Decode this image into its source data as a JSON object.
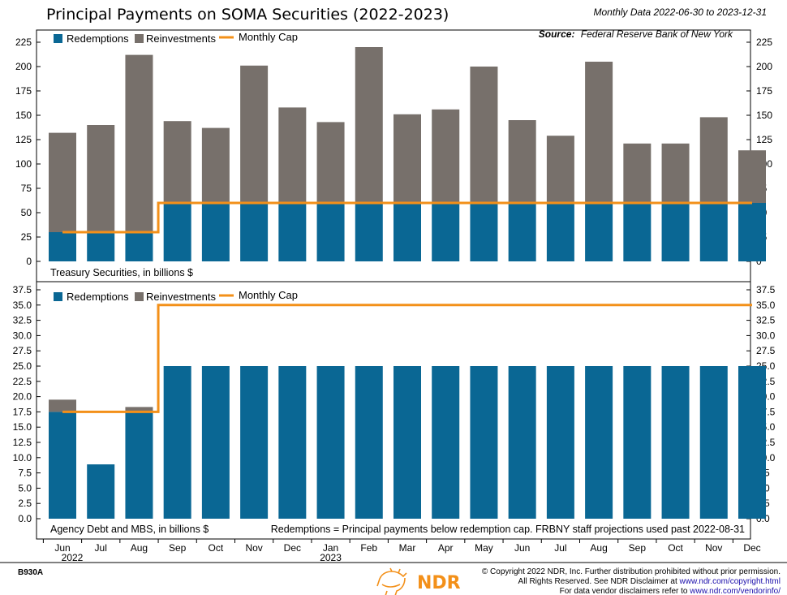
{
  "header": {
    "title": "Principal Payments on SOMA Securities (2022-2023)",
    "data_range": "Monthly Data 2022-06-30 to 2023-12-31",
    "source_label": "Source:",
    "source_text": "Federal Reserve Bank of New York"
  },
  "colors": {
    "redemptions": "#0a6794",
    "reinvestments": "#77706b",
    "cap": "#f39019"
  },
  "chart_data": [
    {
      "type": "bar",
      "subtitle": "Treasury Securities, in billions $",
      "categories": [
        "Jun",
        "Jul",
        "Aug",
        "Sep",
        "Oct",
        "Nov",
        "Dec",
        "Jan",
        "Feb",
        "Mar",
        "Apr",
        "May",
        "Jun",
        "Jul",
        "Aug",
        "Sep",
        "Oct",
        "Nov",
        "Dec"
      ],
      "year_labels": {
        "0": "2022",
        "7": "2023"
      },
      "ylim": [
        0,
        237.5
      ],
      "yticks": [
        0,
        25,
        50,
        75,
        100,
        125,
        150,
        175,
        200,
        225
      ],
      "ytick_labels": [
        "0",
        "25",
        "50",
        "75",
        "100",
        "125",
        "150",
        "175",
        "200",
        "225"
      ],
      "stacked": true,
      "series": [
        {
          "name": "Redemptions",
          "kind": "bar",
          "values": [
            30,
            30,
            30,
            60,
            60,
            60,
            60,
            60,
            60,
            60,
            60,
            60,
            60,
            60,
            60,
            60,
            60,
            60,
            60
          ]
        },
        {
          "name": "Reinvestments",
          "kind": "bar",
          "values": [
            102,
            110,
            182,
            84,
            77,
            141,
            98,
            83,
            160,
            91,
            96,
            140,
            85,
            69,
            145,
            61,
            61,
            88,
            54
          ]
        },
        {
          "name": "Monthly Cap",
          "kind": "step",
          "values": [
            30,
            30,
            30,
            60,
            60,
            60,
            60,
            60,
            60,
            60,
            60,
            60,
            60,
            60,
            60,
            60,
            60,
            60,
            60
          ]
        }
      ],
      "legend": [
        "Redemptions",
        "Reinvestments",
        "Monthly Cap"
      ],
      "legend_position": "top-left"
    },
    {
      "type": "bar",
      "subtitle": "Agency Debt and MBS, in billions $",
      "note": "Redemptions = Principal payments below redemption cap. FRBNY staff projections used past 2022-08-31",
      "categories": [
        "Jun",
        "Jul",
        "Aug",
        "Sep",
        "Oct",
        "Nov",
        "Dec",
        "Jan",
        "Feb",
        "Mar",
        "Apr",
        "May",
        "Jun",
        "Jul",
        "Aug",
        "Sep",
        "Oct",
        "Nov",
        "Dec"
      ],
      "year_labels": {
        "0": "2022",
        "7": "2023"
      },
      "ylim": [
        0,
        38.75
      ],
      "yticks": [
        0,
        2.5,
        5,
        7.5,
        10,
        12.5,
        15,
        17.5,
        20,
        22.5,
        25,
        27.5,
        30,
        32.5,
        35,
        37.5
      ],
      "ytick_labels": [
        "0.0",
        "2.5",
        "5.0",
        "7.5",
        "10.0",
        "12.5",
        "15.0",
        "17.5",
        "20.0",
        "22.5",
        "25.0",
        "27.5",
        "30.0",
        "32.5",
        "35.0",
        "37.5"
      ],
      "stacked": true,
      "series": [
        {
          "name": "Redemptions",
          "kind": "bar",
          "values": [
            17.5,
            8.9,
            17.5,
            25,
            25,
            25,
            25,
            25,
            25,
            25,
            25,
            25,
            25,
            25,
            25,
            25,
            25,
            25,
            25
          ]
        },
        {
          "name": "Reinvestments",
          "kind": "bar",
          "values": [
            2.0,
            0,
            0.8,
            0,
            0,
            0,
            0,
            0,
            0,
            0,
            0,
            0,
            0,
            0,
            0,
            0,
            0,
            0,
            0
          ]
        },
        {
          "name": "Monthly Cap",
          "kind": "step",
          "values": [
            17.5,
            17.5,
            17.5,
            35,
            35,
            35,
            35,
            35,
            35,
            35,
            35,
            35,
            35,
            35,
            35,
            35,
            35,
            35,
            35
          ]
        }
      ],
      "legend": [
        "Redemptions",
        "Reinvestments",
        "Monthly Cap"
      ],
      "legend_position": "top-left"
    }
  ],
  "footer": {
    "code": "B930A",
    "logo_text": "NDR",
    "copyright_line1": "© Copyright 2022 NDR, Inc. Further distribution prohibited without prior permission.",
    "copyright_line2_prefix": "All Rights Reserved. See NDR Disclaimer at ",
    "copyright_line2_link": "www.ndr.com/copyright.html",
    "copyright_line3_prefix": "For data vendor disclaimers refer to ",
    "copyright_line3_link": "www.ndr.com/vendorinfo/"
  }
}
